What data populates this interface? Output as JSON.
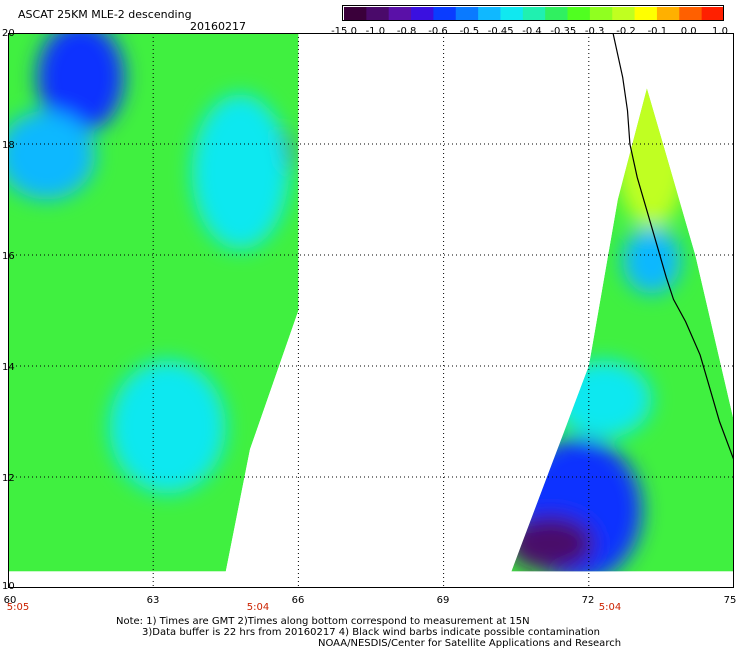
{
  "header": {
    "title": "ASCAT 25KM MLE-2 descending",
    "date": "20160217"
  },
  "colorbar": {
    "labels": [
      "-15.0",
      "-1.0",
      "-0.8",
      "-0.6",
      "-0.5",
      "-0.45",
      "-0.4",
      "-0.35",
      "-0.3",
      "-0.2",
      "-0.1",
      "0.0",
      "1.0"
    ],
    "colors": [
      "#3a003a",
      "#4a0a6a",
      "#5a10a8",
      "#3a10e0",
      "#0a3cff",
      "#0a7aff",
      "#10b8ff",
      "#10e8f0",
      "#20f0b0",
      "#30f060",
      "#50ff20",
      "#90ff20",
      "#c0ff20",
      "#ffff00",
      "#ffb000",
      "#ff6000",
      "#ff2000"
    ]
  },
  "axes": {
    "lat_labels": [
      "20",
      "18",
      "16",
      "14",
      "12",
      "10"
    ],
    "lon_labels": [
      "60",
      "63",
      "66",
      "69",
      "72",
      "75"
    ],
    "time_labels": [
      "5:05",
      "5:04",
      "5:04"
    ]
  },
  "notes": {
    "line1": "Note: 1) Times are GMT 2)Times along bottom correspond to measurement at 15N",
    "line2": "3)Data buffer is 22 hrs from 20160217 4) Black wind barbs indicate possible contamination",
    "line3": "NOAA/NESDIS/Center for Satellite Applications and Research"
  },
  "map_data": {
    "lon_range": [
      60,
      75
    ],
    "lat_range": [
      10,
      20
    ],
    "grid_lons": [
      63,
      66,
      69,
      72
    ],
    "grid_lats": [
      12,
      14,
      16,
      18
    ],
    "left_swath": [
      [
        60,
        20
      ],
      [
        66,
        20
      ],
      [
        66,
        15
      ],
      [
        65,
        12.5
      ],
      [
        64.5,
        10.3
      ],
      [
        60,
        10.3
      ]
    ],
    "right_swath": [
      [
        73.2,
        19
      ],
      [
        74.2,
        16
      ],
      [
        75,
        13
      ],
      [
        75,
        10.3
      ],
      [
        70.4,
        10.3
      ],
      [
        72,
        14
      ],
      [
        72.6,
        17
      ]
    ],
    "coastline": [
      [
        72.5,
        20
      ],
      [
        72.7,
        19.2
      ],
      [
        72.8,
        18.6
      ],
      [
        72.85,
        18
      ],
      [
        73,
        17.4
      ],
      [
        73.2,
        16.8
      ],
      [
        73.4,
        16.2
      ],
      [
        73.6,
        15.6
      ],
      [
        73.75,
        15.2
      ],
      [
        74,
        14.8
      ],
      [
        74.3,
        14.2
      ],
      [
        74.5,
        13.6
      ],
      [
        74.7,
        13
      ],
      [
        75,
        12.3
      ]
    ],
    "features": [
      {
        "lon": 61.5,
        "lat": 19.2,
        "rx": 0.9,
        "ry": 1.0,
        "color": "#1030ff"
      },
      {
        "lon": 60.8,
        "lat": 17.8,
        "rx": 1.0,
        "ry": 0.8,
        "color": "#10b8ff"
      },
      {
        "lon": 65.3,
        "lat": 17.8,
        "rx": 0.6,
        "ry": 0.6,
        "color": "#4a0a6a"
      },
      {
        "lon": 64.8,
        "lat": 17.5,
        "rx": 1.0,
        "ry": 1.4,
        "color": "#10e8f0"
      },
      {
        "lon": 63.3,
        "lat": 12.9,
        "rx": 1.2,
        "ry": 1.2,
        "color": "#10e8f0"
      },
      {
        "lon": 71.8,
        "lat": 11.4,
        "rx": 1.3,
        "ry": 1.3,
        "color": "#1030ff"
      },
      {
        "lon": 71.2,
        "lat": 10.8,
        "rx": 0.9,
        "ry": 0.5,
        "color": "#4a0a6a"
      },
      {
        "lon": 73.3,
        "lat": 15.9,
        "rx": 0.6,
        "ry": 0.6,
        "color": "#10b8ff"
      },
      {
        "lon": 72.3,
        "lat": 13.4,
        "rx": 1.0,
        "ry": 0.7,
        "color": "#10e8f0"
      },
      {
        "lon": 73.3,
        "lat": 18.0,
        "rx": 0.8,
        "ry": 1.5,
        "color": "#c0ff20"
      }
    ]
  }
}
